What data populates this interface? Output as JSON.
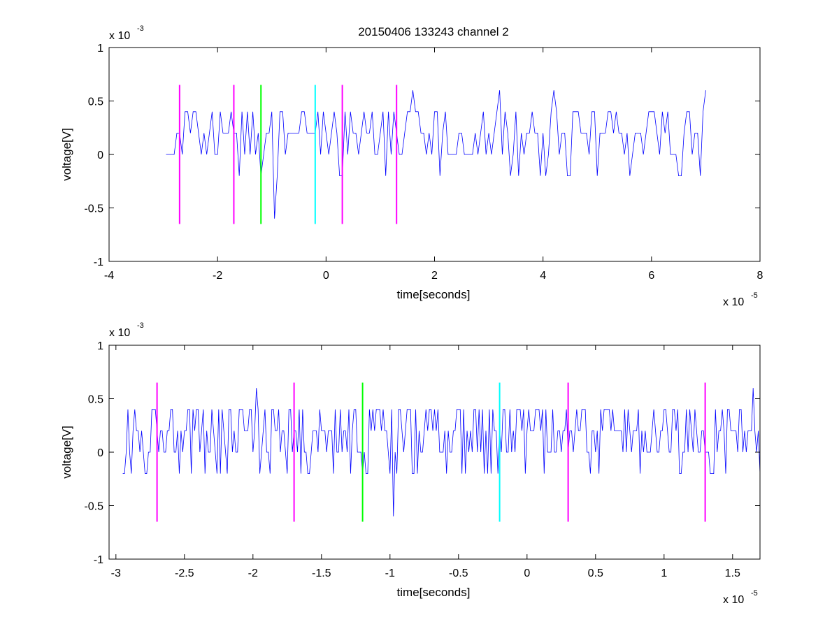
{
  "chart_data": [
    {
      "type": "line",
      "title": "20150406 133243 channel 2",
      "xlabel": "time[seconds]",
      "ylabel": "voltage[V]",
      "x_multiplier": "x 10",
      "x_exponent": "-5",
      "y_multiplier": "x 10",
      "y_exponent": "-3",
      "xlim": [
        -4,
        8
      ],
      "ylim": [
        -1,
        1
      ],
      "xticks": [
        "-4",
        "-2",
        "0",
        "2",
        "4",
        "6",
        "8"
      ],
      "xtick_values": [
        -4,
        -2,
        0,
        2,
        4,
        6,
        8
      ],
      "yticks": [
        "-1",
        "-0.5",
        "0",
        "0.5",
        "1"
      ],
      "ytick_values": [
        -1,
        -0.5,
        0,
        0.5,
        1
      ],
      "grid": false,
      "series": [
        {
          "color": "#0000ff",
          "x_range": [
            -2.95,
            7.0
          ],
          "baseline": 0.2,
          "levels": [
            -0.2,
            0,
            0.2,
            0.4,
            0.6
          ],
          "notable_points": [
            [
              -0.95,
              -0.6
            ],
            [
              -1.2,
              -0.2
            ],
            [
              1.6,
              0.6
            ],
            [
              3.2,
              0.6
            ],
            [
              4.2,
              0.6
            ],
            [
              7.0,
              0.6
            ]
          ]
        }
      ],
      "markers": [
        {
          "x": -2.7,
          "color": "#ff00ff"
        },
        {
          "x": -1.7,
          "color": "#ff00ff"
        },
        {
          "x": -1.2,
          "color": "#00ff00"
        },
        {
          "x": -0.2,
          "color": "#00ffff"
        },
        {
          "x": 0.3,
          "color": "#ff00ff"
        },
        {
          "x": 1.3,
          "color": "#ff00ff"
        }
      ],
      "marker_range": [
        -0.65,
        0.65
      ]
    },
    {
      "type": "line",
      "title": "",
      "xlabel": "time[seconds]",
      "ylabel": "voltage[V]",
      "x_multiplier": "x 10",
      "x_exponent": "-5",
      "y_multiplier": "x 10",
      "y_exponent": "-3",
      "xlim": [
        -3.05,
        1.7
      ],
      "ylim": [
        -1,
        1
      ],
      "xticks": [
        "-3",
        "-2.5",
        "-2",
        "-1.5",
        "-1",
        "-0.5",
        "0",
        "0.5",
        "1",
        "1.5"
      ],
      "xtick_values": [
        -3,
        -2.5,
        -2,
        -1.5,
        -1,
        -0.5,
        0,
        0.5,
        1,
        1.5
      ],
      "yticks": [
        "-1",
        "-0.5",
        "0",
        "0.5",
        "1"
      ],
      "ytick_values": [
        -1,
        -0.5,
        0,
        0.5,
        1
      ],
      "grid": false,
      "series": [
        {
          "color": "#0000ff",
          "x_range": [
            -2.95,
            1.7
          ],
          "baseline": 0.2,
          "levels": [
            -0.2,
            0,
            0.2,
            0.4,
            0.6
          ],
          "notable_points": [
            [
              -0.98,
              -0.6
            ],
            [
              -1.97,
              0.6
            ],
            [
              -1.2,
              -0.2
            ],
            [
              1.65,
              0.6
            ],
            [
              1.7,
              -0.2
            ]
          ]
        }
      ],
      "markers": [
        {
          "x": -2.7,
          "color": "#ff00ff"
        },
        {
          "x": -1.7,
          "color": "#ff00ff"
        },
        {
          "x": -1.2,
          "color": "#00ff00"
        },
        {
          "x": -0.2,
          "color": "#00ffff"
        },
        {
          "x": 0.3,
          "color": "#ff00ff"
        },
        {
          "x": 1.3,
          "color": "#ff00ff"
        }
      ],
      "marker_range": [
        -0.65,
        0.65
      ]
    }
  ]
}
